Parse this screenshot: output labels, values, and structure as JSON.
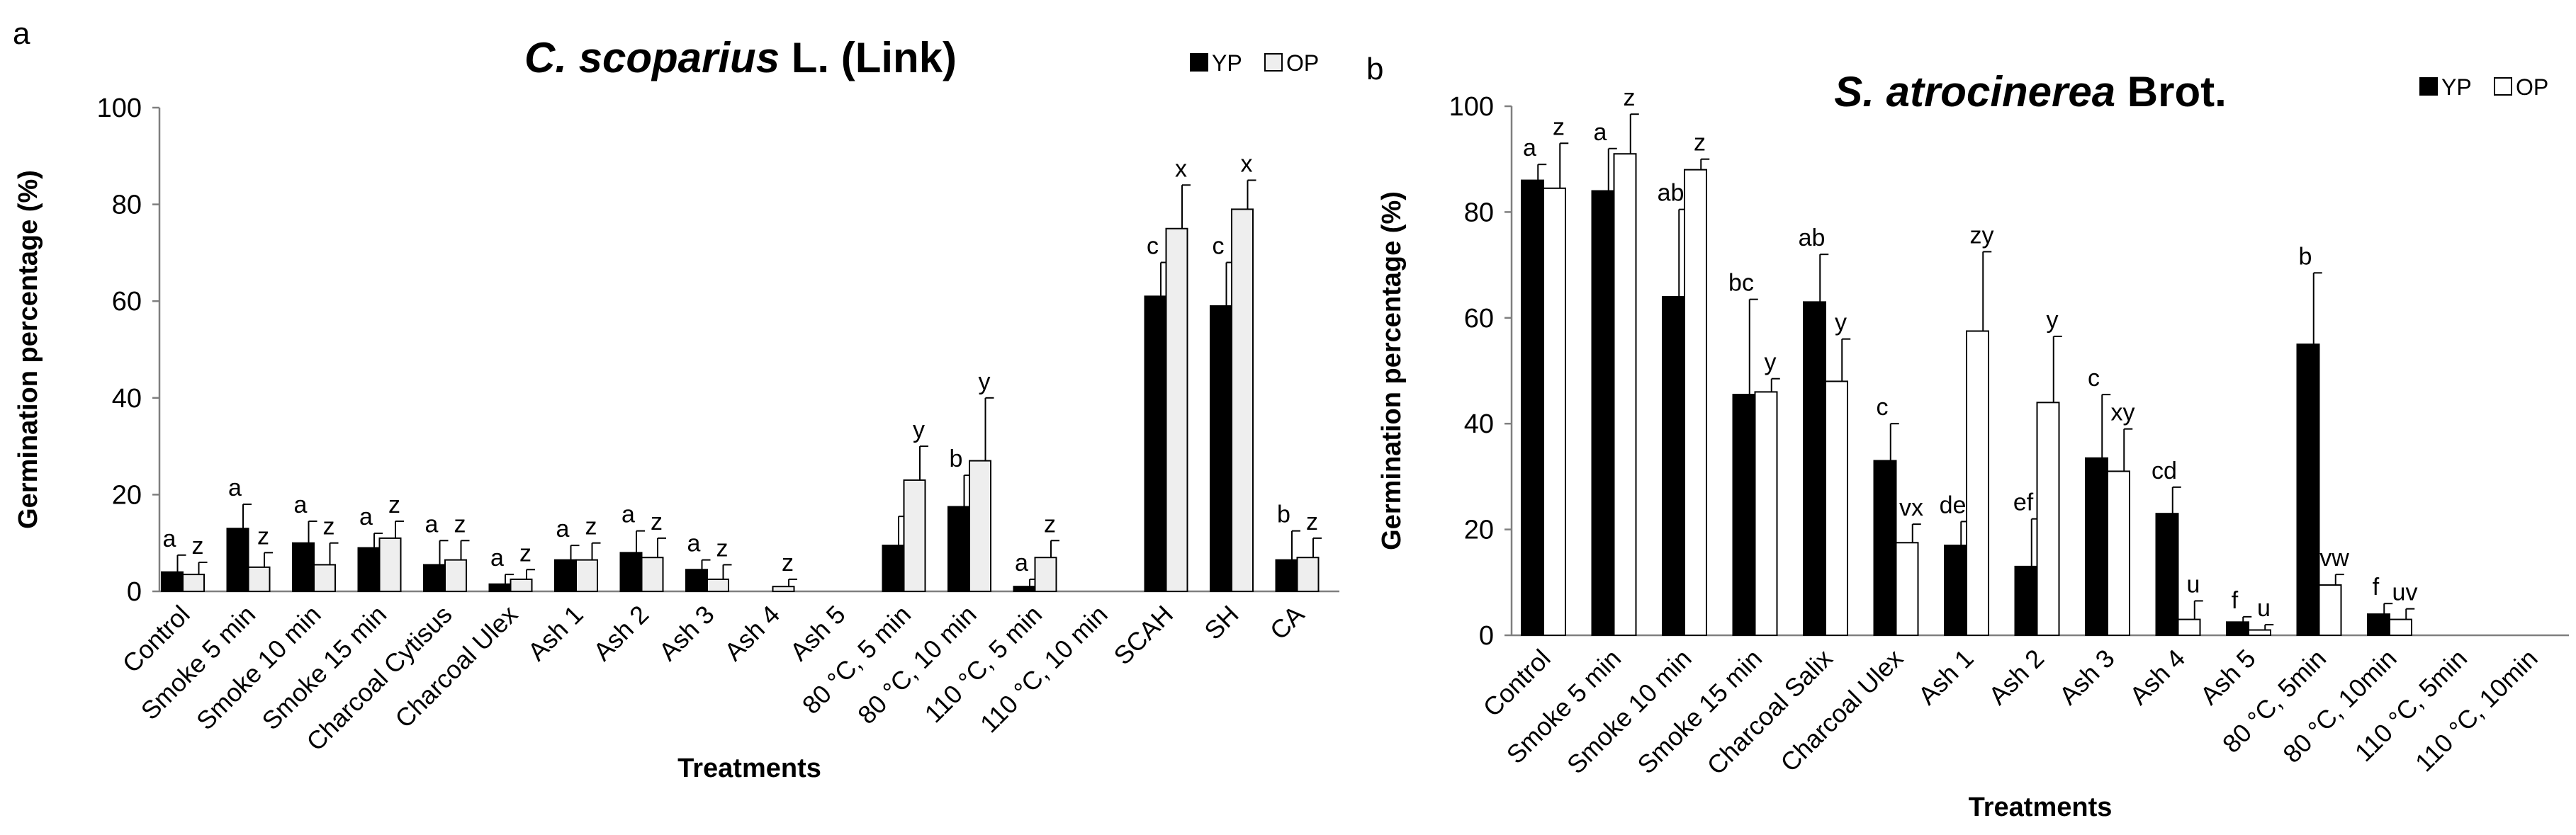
{
  "chart_data": [
    {
      "type": "bar",
      "panel_letter": "a",
      "title": {
        "species": "C. scoparius",
        "authority": "L. (Link)"
      },
      "xlabel": "Treatments",
      "ylabel": "Germination percentage (%)",
      "ylim": [
        0,
        100
      ],
      "yticks": [
        "0",
        "20",
        "40",
        "60",
        "80",
        "100"
      ],
      "grid": false,
      "legend_position": "top-right",
      "categories": [
        "Control",
        "Smoke 5 min",
        "Smoke 10 min",
        "Smoke 15 min",
        "Charcoal Cytisus",
        "Charcoal Ulex",
        "Ash 1",
        "Ash 2",
        "Ash 3",
        "Ash 4",
        "Ash 5",
        "80 °C, 5 min",
        "80 °C, 10 min",
        "110 °C, 5 min",
        "110 °C, 10 min",
        "SCAH",
        "SH",
        "CA"
      ],
      "series": [
        {
          "name": "YP",
          "color": "#000000",
          "values": [
            4,
            13,
            10,
            9,
            5.5,
            1.5,
            6.5,
            8,
            4.5,
            0,
            0,
            9.5,
            17.5,
            1,
            0,
            61,
            59,
            6.5
          ],
          "errors": [
            3.5,
            5,
            4.5,
            3,
            5,
            2,
            3,
            4.5,
            2,
            0,
            0,
            6,
            6.5,
            1.5,
            0,
            7,
            9,
            6
          ],
          "labels": [
            "a",
            "a",
            "a",
            "a",
            "a",
            "a",
            "a",
            "a",
            "a",
            "",
            "",
            "",
            "b",
            "a",
            "",
            "c",
            "c",
            "b"
          ]
        },
        {
          "name": "OP",
          "color": "#eeeeee",
          "values": [
            3.5,
            5,
            5.5,
            11,
            6.5,
            2.5,
            6.5,
            7,
            2.5,
            1,
            0,
            23,
            27,
            7,
            0,
            75,
            79,
            7
          ],
          "errors": [
            2.5,
            3,
            4.5,
            3.5,
            4,
            2,
            3.5,
            4,
            3,
            1.5,
            0,
            7,
            13,
            3.5,
            0,
            9,
            6,
            4
          ],
          "labels": [
            "z",
            "z",
            "z",
            "z",
            "z",
            "z",
            "z",
            "z",
            "z",
            "z",
            "",
            "y",
            "y",
            "z",
            "",
            "x",
            "x",
            "z"
          ]
        }
      ]
    },
    {
      "type": "bar",
      "panel_letter": "b",
      "title": {
        "species": "S. atrocinerea",
        "authority": "Brot."
      },
      "xlabel": "Treatments",
      "ylabel": "Germination percentage (%)",
      "ylim": [
        0,
        100
      ],
      "yticks": [
        "0",
        "20",
        "40",
        "60",
        "80",
        "100"
      ],
      "grid": false,
      "legend_position": "top-right",
      "categories": [
        "Control",
        "Smoke 5 min",
        "Smoke 10 min",
        "Smoke 15 min",
        "Charcoal Salix",
        "Charcoal Ulex",
        "Ash 1",
        "Ash 2",
        "Ash 3",
        "Ash 4",
        "Ash 5",
        "80 °C, 5min",
        "80 °C, 10min",
        "110 °C, 5min",
        "110 °C, 10min"
      ],
      "series": [
        {
          "name": "YP",
          "color": "#000000",
          "values": [
            86,
            84,
            64,
            45.5,
            63,
            33,
            17,
            13,
            33.5,
            23,
            2.5,
            55,
            4,
            0,
            0
          ],
          "errors": [
            3,
            8,
            16.5,
            18,
            9,
            7,
            4.5,
            9,
            12,
            5,
            1,
            13.5,
            2,
            0,
            0
          ],
          "labels": [
            "a",
            "a",
            "ab",
            "bc",
            "ab",
            "c",
            "de",
            "ef",
            "c",
            "cd",
            "f",
            "b",
            "f",
            "",
            ""
          ],
          "label_over_bar": [
            false,
            false,
            false,
            false,
            false,
            false,
            true,
            false,
            false,
            false,
            false,
            false,
            false,
            false,
            false
          ]
        },
        {
          "name": "OP",
          "color": "#ffffff",
          "values": [
            84.5,
            91,
            88,
            46,
            48,
            17.5,
            57.5,
            44,
            31,
            3,
            1,
            9.5,
            3,
            0,
            0
          ],
          "errors": [
            8.5,
            7.5,
            2,
            2.5,
            8,
            3.5,
            15,
            12.5,
            8,
            3.5,
            1,
            2,
            2,
            0,
            0
          ],
          "labels": [
            "z",
            "z",
            "z",
            "y",
            "y",
            "vx",
            "zy",
            "y",
            "xy",
            "u",
            "u",
            "vw",
            "uv",
            "",
            ""
          ]
        }
      ]
    }
  ]
}
